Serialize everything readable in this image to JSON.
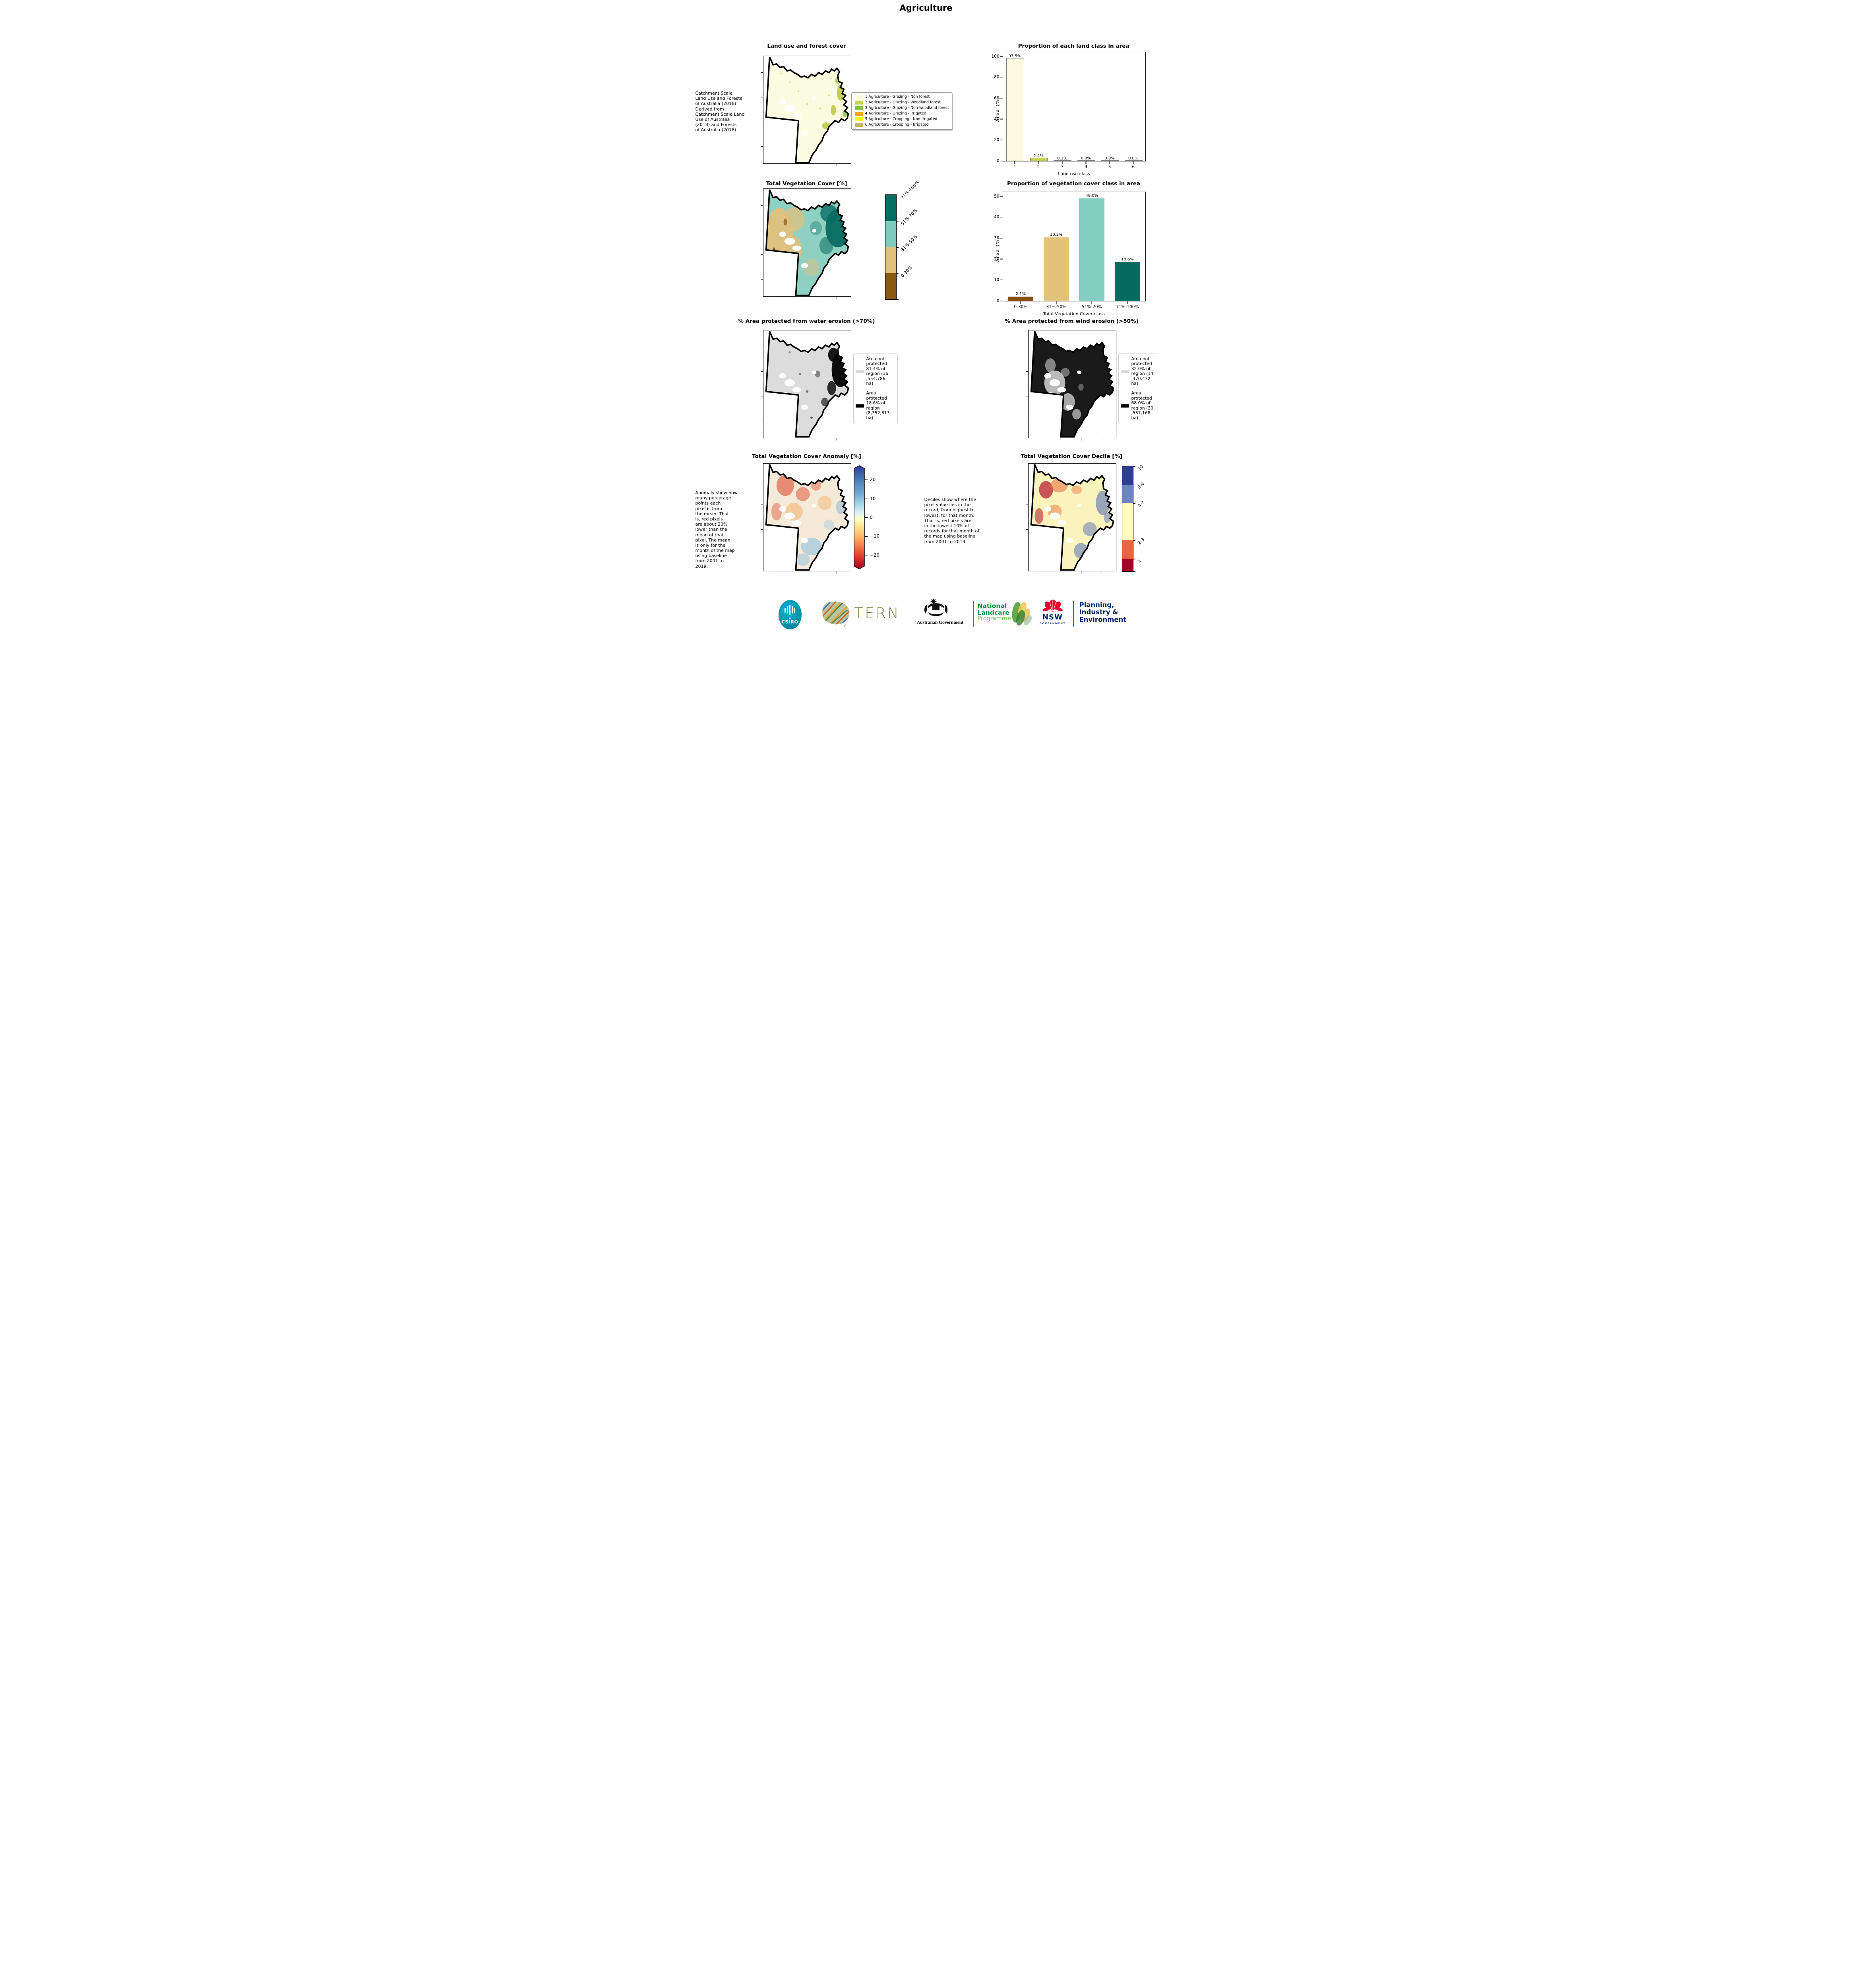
{
  "page": {
    "title": "Agriculture"
  },
  "row1": {
    "map_title": "Land use and forest cover",
    "side_note": " Catchment Scale\nLand Use and Forests\nof Australia (2018)\nDerived from\nCatchment Scale Land\nUse of Australia\n(2018) and Forests\nof Australia (2018)",
    "legend": [
      {
        "color": "#fdfce1",
        "label": "1 Agriculture - Grazing - Non forest"
      },
      {
        "color": "#c6d34f",
        "label": "2 Agriculture - Grazing - Woodland forest"
      },
      {
        "color": "#84c441",
        "label": "3 Agriculture - Grazing - Non-woodland forest"
      },
      {
        "color": "#ffa410",
        "label": "4 Agriculture - Grazing - Irrigated"
      },
      {
        "color": "#fcfe08",
        "label": "5 Agriculture - Cropping - Non-irrigated"
      },
      {
        "color": "#c4b266",
        "label": "6 Agriculture - Cropping - Irrigated"
      }
    ]
  },
  "row2": {
    "map_title": "Total Vegetation Cover [%]",
    "colorbar": [
      {
        "color": "#056d62",
        "label": "71%-100%"
      },
      {
        "color": "#7fccbf",
        "label": "51%-70%"
      },
      {
        "color": "#e2c17d",
        "label": "31%-50%"
      },
      {
        "color": "#8a5a13",
        "label": "0-30%"
      }
    ]
  },
  "row3": {
    "water": {
      "title": "% Area protected from water erosion (>70%)",
      "legend": [
        {
          "color": "#d9d9d9",
          "label": "Area not\nprotected\n81.4% of\nregion (36\n,554,786\nha)"
        },
        {
          "color": "#000000",
          "label": "Area\nprotected\n18.6% of\nregion\n(8,352,813\nha)"
        }
      ]
    },
    "wind": {
      "title": "% Area protected from wind erosion (>50%)",
      "legend": [
        {
          "color": "#d9d9d9",
          "label": "Area not\nprotected\n32.0% of\nregion (14\n,370,432\nha)"
        },
        {
          "color": "#000000",
          "label": "Area\nprotected\n68.0% of\nregion (30\n,537,168\nha)"
        }
      ]
    }
  },
  "row4": {
    "anomaly": {
      "title": "Total Vegetation Cover Anomaly [%]",
      "side_note": "Anomaly show how\nmany percetage\npoints each\npixel is from\nthe mean. That\nis, red pixels\nare about 20%\nlower than the\nmean of that\npixel. The mean\nis only for the\nmonth of the map\nusing baseline\nfrom 2001 to\n2019.",
      "ticks": [
        {
          "v": 20,
          "label": "20"
        },
        {
          "v": 10,
          "label": "10"
        },
        {
          "v": 0,
          "label": "0"
        },
        {
          "v": -10,
          "label": "−10"
        },
        {
          "v": -20,
          "label": "−20"
        }
      ]
    },
    "decile": {
      "title": "Total Vegetation Cover Decile [%]",
      "side_note": "Deciles show where the\npixel value lies in the\nrecord, from highest to\nlowest, for that month.\nThat is, red pixels are\nin the lowest 10% of\nrecords for that month of\nthe map using baseline\nfrom 2001 to 2019.",
      "colorbar": [
        {
          "color": "#2d3e92",
          "label": "10",
          "h": 17.5
        },
        {
          "color": "#6d85c1",
          "label": "8-9",
          "h": 17.5
        },
        {
          "color": "#fefcc0",
          "label": "4-7",
          "h": 35.5
        },
        {
          "color": "#e76743",
          "label": "2-3",
          "h": 17.5
        },
        {
          "color": "#a30326",
          "label": "1",
          "h": 12
        }
      ]
    }
  },
  "chart_data": [
    {
      "type": "bar",
      "title": "Proportion of each land class in area",
      "xlabel": "Land use class",
      "ylabel": "Area (%)",
      "categories": [
        "1",
        "2",
        "3",
        "4",
        "5",
        "6"
      ],
      "values": [
        97.5,
        2.4,
        0.1,
        0.0,
        0.0,
        0.0
      ],
      "labels": [
        "97.5%",
        "2.4%",
        "0.1%",
        "0.0%",
        "0.0%",
        "0.0%"
      ],
      "bar_colors": [
        "#fdfce1",
        "#c6d34f",
        "#84c441",
        "#ffa410",
        "#fcfe08",
        "#c4b266"
      ],
      "bar_edge": "#7f7f7f",
      "ylim": [
        0,
        104
      ],
      "yticks": [
        0,
        20,
        40,
        60,
        80,
        100
      ],
      "legend_position": "none",
      "grid": false
    },
    {
      "type": "bar",
      "title": "Proportion of vegetation cover class in area",
      "xlabel": "Total Vegetation Cover class",
      "ylabel": "Area (%)",
      "categories": [
        "0-30%",
        "31%-50%",
        "51%-70%",
        "71%-100%"
      ],
      "values": [
        2.1,
        30.3,
        49.0,
        18.6
      ],
      "labels": [
        "2.1%",
        "30.3%",
        "49.0%",
        "18.6%"
      ],
      "bar_colors": [
        "#8a4d10",
        "#e2c379",
        "#83cec1",
        "#066a60"
      ],
      "bar_edge": null,
      "ylim": [
        0,
        52
      ],
      "yticks": [
        0,
        10,
        20,
        30,
        40,
        50
      ],
      "legend_position": "none",
      "grid": false
    }
  ],
  "footer": {
    "csiro": "CSIRO",
    "tern": "TERN",
    "ausgov": "Australian Government",
    "landcare": {
      "l1": "National",
      "l2": "Landcare",
      "l3": "Programme"
    },
    "nsw": {
      "l1": "NSW",
      "l2": "GOVERNMENT"
    },
    "planning": "Planning,\nIndustry &\nEnvironment"
  }
}
